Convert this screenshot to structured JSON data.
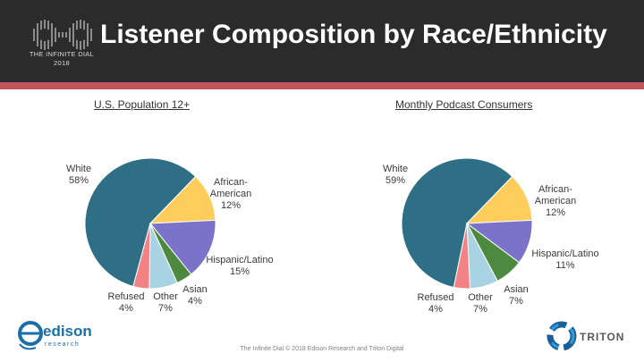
{
  "header": {
    "title": "Listener Composition by Race/Ethnicity",
    "logo_line1": "THE INFINITE DIAL",
    "logo_line2": "2018"
  },
  "chart_data": [
    {
      "type": "pie",
      "title": "U.S. Population 12+",
      "slices": [
        {
          "label_lines": [
            "White",
            "58%"
          ],
          "value": 58,
          "color": "#2e6f86"
        },
        {
          "label_lines": [
            "African-",
            "American",
            "12%"
          ],
          "value": 12,
          "color": "#ffcd5c"
        },
        {
          "label_lines": [
            "Hispanic/Latino",
            "15%"
          ],
          "value": 15,
          "color": "#7a73c9"
        },
        {
          "label_lines": [
            "Asian",
            "4%"
          ],
          "value": 4,
          "color": "#4d8a3f"
        },
        {
          "label_lines": [
            "Other",
            "7%"
          ],
          "value": 7,
          "color": "#a9d3e3"
        },
        {
          "label_lines": [
            "Refused",
            "4%"
          ],
          "value": 4,
          "color": "#f28284"
        }
      ]
    },
    {
      "type": "pie",
      "title": "Monthly Podcast Consumers",
      "slices": [
        {
          "label_lines": [
            "White",
            "59%"
          ],
          "value": 59,
          "color": "#2e6f86"
        },
        {
          "label_lines": [
            "African-",
            "American",
            "12%"
          ],
          "value": 12,
          "color": "#ffcd5c"
        },
        {
          "label_lines": [
            "Hispanic/Latino",
            "11%"
          ],
          "value": 11,
          "color": "#7a73c9"
        },
        {
          "label_lines": [
            "Asian",
            "7%"
          ],
          "value": 7,
          "color": "#4d8a3f"
        },
        {
          "label_lines": [
            "Other",
            "7%"
          ],
          "value": 7,
          "color": "#a9d3e3"
        },
        {
          "label_lines": [
            "Refused",
            "4%"
          ],
          "value": 4,
          "color": "#f28284"
        }
      ]
    }
  ],
  "footer": {
    "text": "The Infinite Dial  © 2018 Edison Research and Triton Digital"
  },
  "logos": {
    "edison_name": "edison",
    "edison_sub": "research",
    "triton_name": "TRITON"
  }
}
